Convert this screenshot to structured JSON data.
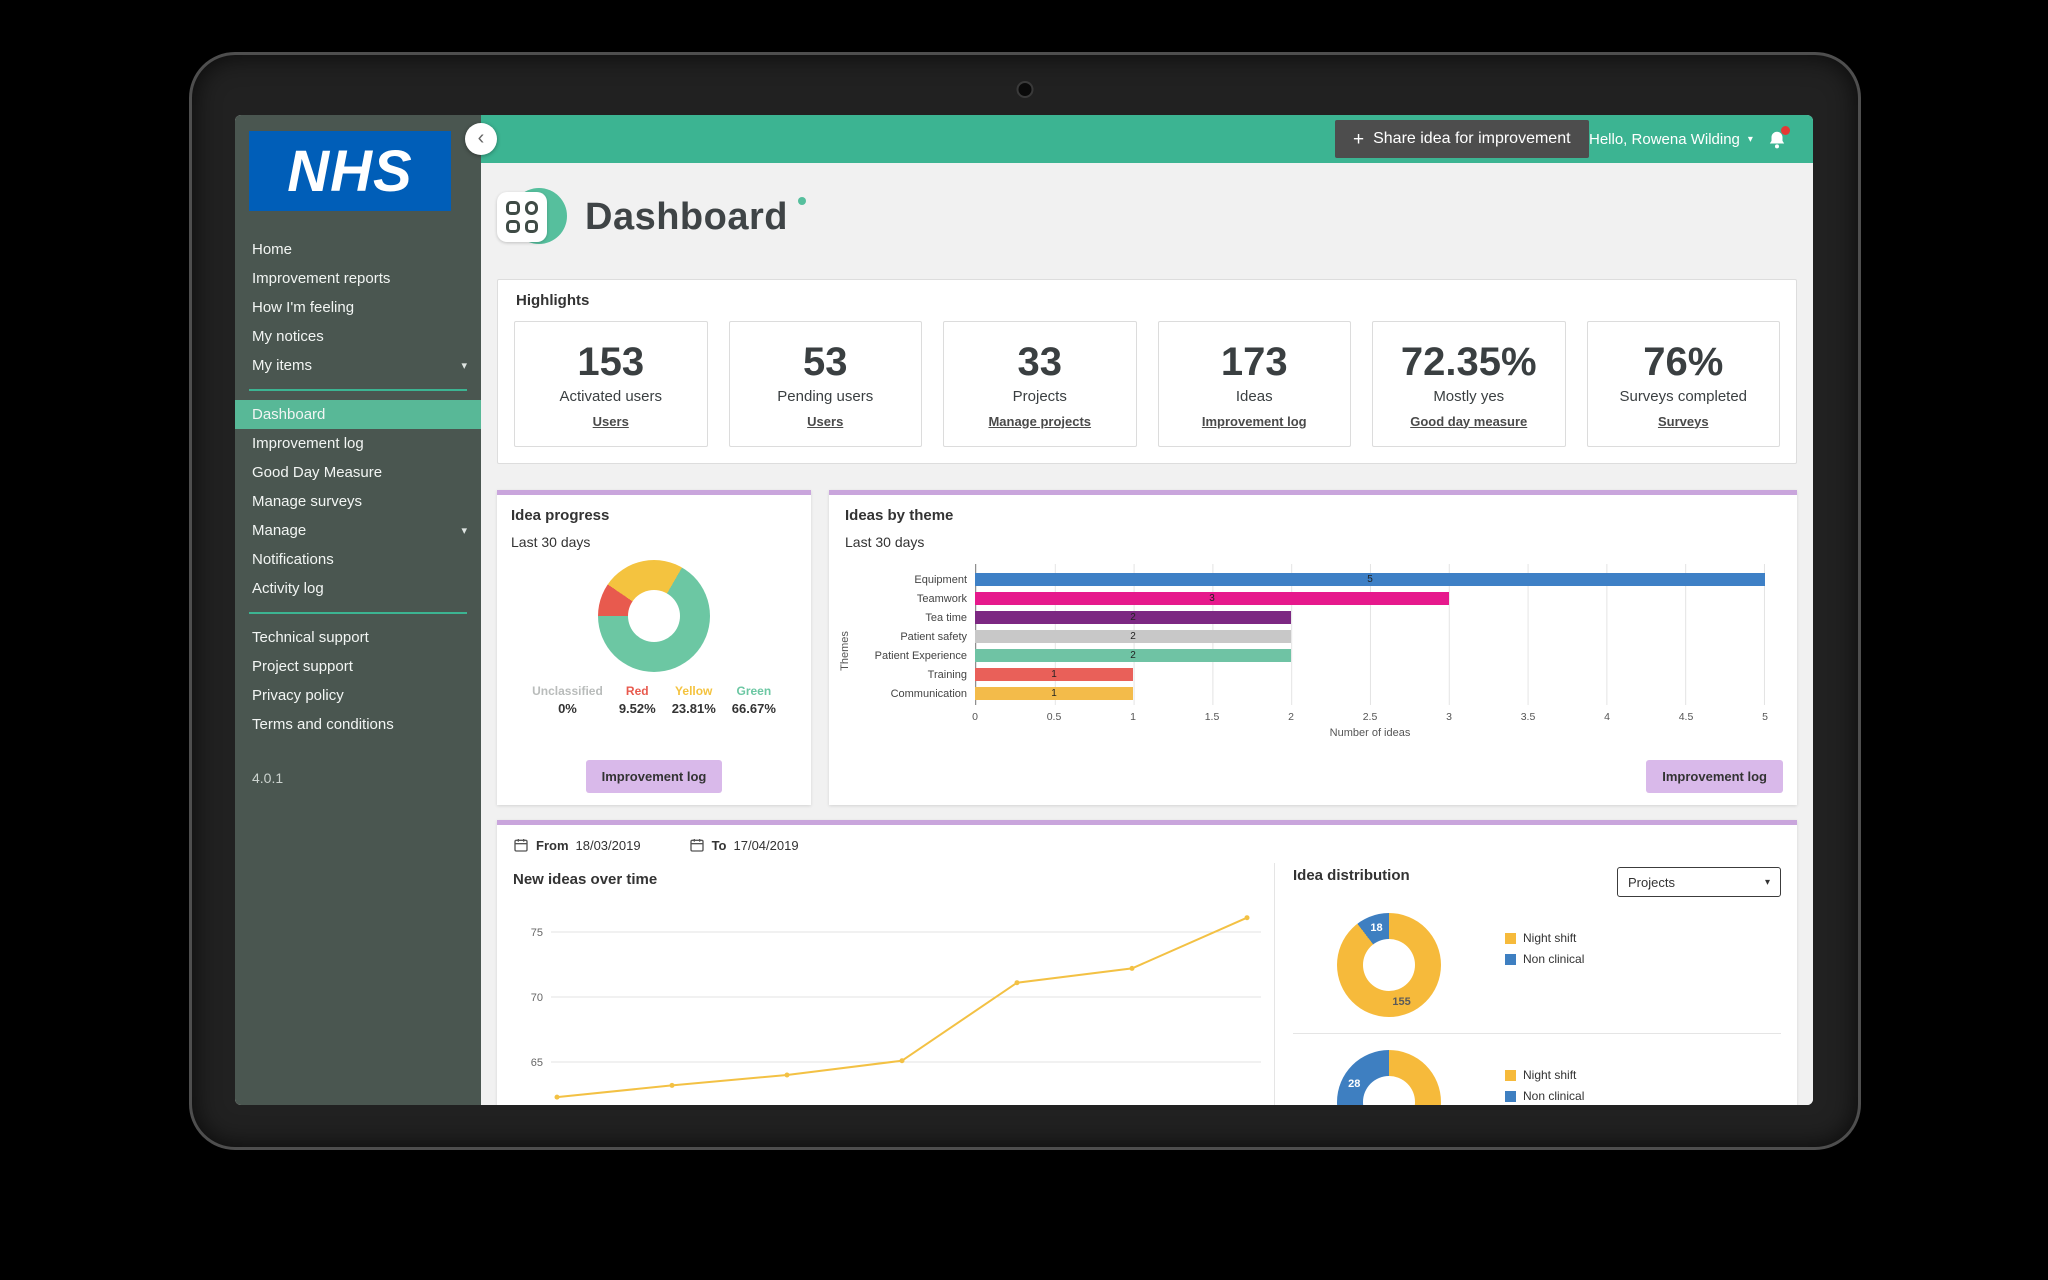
{
  "icons": {
    "back_chevron": "‹",
    "caret_down": "▾",
    "plus": "+"
  },
  "topbar": {
    "share_label": "Share idea for improvement",
    "greeting": "Hello, Rowena Wilding"
  },
  "sidebar": {
    "logo_text": "NHS",
    "version": "4.0.1",
    "items": [
      {
        "label": "Home"
      },
      {
        "label": "Improvement reports"
      },
      {
        "label": "How I'm feeling"
      },
      {
        "label": "My notices"
      },
      {
        "label": "My items",
        "chevron": true
      },
      {
        "divider": true
      },
      {
        "label": "Dashboard",
        "active": true
      },
      {
        "label": "Improvement log"
      },
      {
        "label": "Good Day Measure"
      },
      {
        "label": "Manage surveys"
      },
      {
        "label": "Manage",
        "chevron": true
      },
      {
        "label": "Notifications"
      },
      {
        "label": "Activity log"
      },
      {
        "divider": true
      },
      {
        "label": "Technical support"
      },
      {
        "label": "Project support"
      },
      {
        "label": "Privacy policy"
      },
      {
        "label": "Terms and conditions"
      }
    ]
  },
  "page": {
    "title": "Dashboard"
  },
  "highlights": {
    "title": "Highlights",
    "cards": [
      {
        "value": "153",
        "label": "Activated users",
        "link": "Users"
      },
      {
        "value": "53",
        "label": "Pending users",
        "link": "Users"
      },
      {
        "value": "33",
        "label": "Projects",
        "link": "Manage projects"
      },
      {
        "value": "173",
        "label": "Ideas",
        "link": "Improvement log"
      },
      {
        "value": "72.35%",
        "label": "Mostly yes",
        "link": "Good day measure"
      },
      {
        "value": "76%",
        "label": "Surveys completed",
        "link": "Surveys"
      }
    ]
  },
  "panels": {
    "idea_progress": {
      "title": "Idea progress",
      "subtitle": "Last 30 days",
      "button_label": "Improvement log",
      "start_angle": 30,
      "slice_render_order": [
        3,
        1,
        2
      ],
      "chart": {
        "type": "pie",
        "slices": [
          {
            "name": "Unclassified",
            "pct": 0,
            "pct_label": "0%",
            "color": "#b9bcbb"
          },
          {
            "name": "Red",
            "pct": 9.52,
            "pct_label": "9.52%",
            "color": "#e85a4e"
          },
          {
            "name": "Yellow",
            "pct": 23.81,
            "pct_label": "23.81%",
            "color": "#f4c33f"
          },
          {
            "name": "Green",
            "pct": 66.67,
            "pct_label": "66.67%",
            "color": "#6cc7a3"
          }
        ]
      }
    },
    "ideas_by_theme": {
      "title": "Ideas by theme",
      "subtitle": "Last 30 days",
      "button_label": "Improvement log",
      "chart": {
        "type": "bar",
        "orientation": "horizontal",
        "xlabel": "Number of ideas",
        "ylabel": "Themes",
        "xlim": [
          0,
          5
        ],
        "xticks": [
          0,
          0.5,
          1,
          1.5,
          2,
          2.5,
          3,
          3.5,
          4,
          4.5,
          5
        ],
        "categories": [
          "Equipment",
          "Teamwork",
          "Tea time",
          "Patient safety",
          "Patient Experience",
          "Training",
          "Communication"
        ],
        "values": [
          5,
          3,
          2,
          2,
          2,
          1,
          1
        ],
        "colors": [
          "#3e80c6",
          "#e6198c",
          "#7c2882",
          "#c8c8c8",
          "#6fc3a4",
          "#e96059",
          "#f3bb4a"
        ]
      }
    },
    "date_range": {
      "from_label": "From",
      "from_value": "18/03/2019",
      "to_label": "To",
      "to_value": "17/04/2019"
    },
    "new_ideas": {
      "title": "New ideas over time",
      "chart": {
        "type": "line",
        "color": "#f3c144",
        "values": [
          62.3,
          63.2,
          64.0,
          65.1,
          71.1,
          72.2,
          76.1
        ],
        "yticks": [
          65,
          70,
          75
        ]
      }
    },
    "idea_distribution": {
      "title": "Idea distribution",
      "dropdown_value": "Projects",
      "charts": [
        {
          "type": "pie",
          "segments": [
            {
              "label": "155",
              "value": 155,
              "color": "#f6ba3b",
              "frac": 0.896,
              "label_color": "#5a5a5a"
            },
            {
              "label": "18",
              "value": 18,
              "color": "#3e7fc1",
              "frac": 0.104,
              "label_color": "#ffffff"
            }
          ],
          "legend": [
            {
              "label": "Night shift",
              "color": "#f6ba3b"
            },
            {
              "label": "Non clinical",
              "color": "#3e7fc1"
            }
          ]
        },
        {
          "type": "pie",
          "segments": [
            {
              "color": "#f6ba3b",
              "frac": 0.65
            },
            {
              "label": "28",
              "value": 28,
              "color": "#3e7fc1",
              "frac": 0.35,
              "label_color": "#ffffff"
            }
          ],
          "legend": [
            {
              "label": "Night shift",
              "color": "#f6ba3b"
            },
            {
              "label": "Non clinical",
              "color": "#3e7fc1"
            }
          ]
        }
      ]
    }
  }
}
